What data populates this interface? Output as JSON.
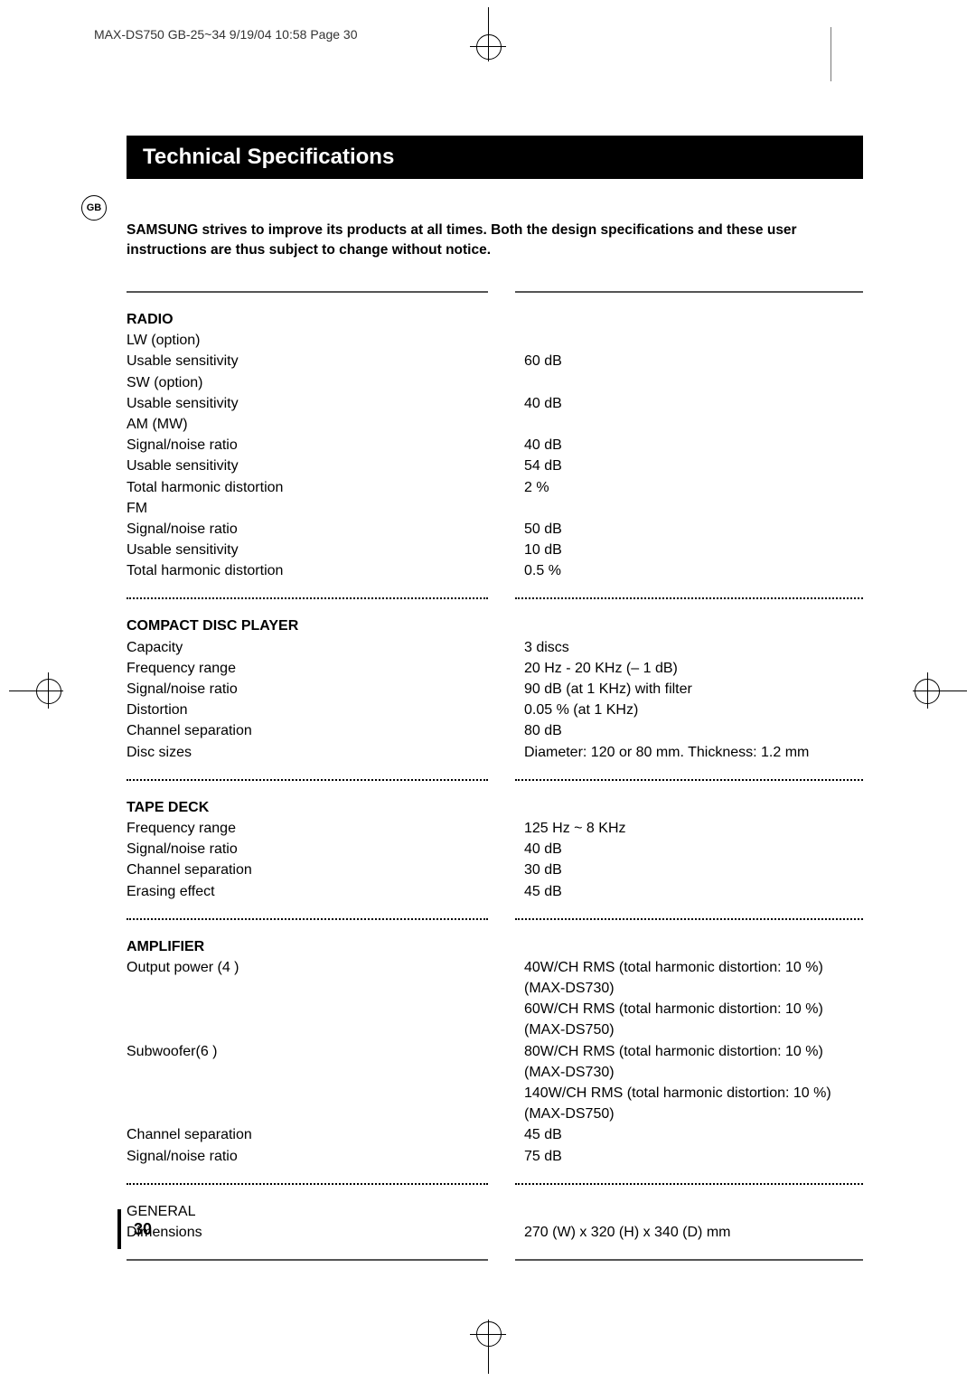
{
  "header": "MAX-DS750 GB-25~34  9/19/04 10:58  Page 30",
  "title": "Technical Specifications",
  "gb_badge": "GB",
  "intro_line1": "SAMSUNG strives to improve its products at all times. Both the design specifications and these user",
  "intro_line2": "instructions are thus subject to change without notice.",
  "radio": {
    "heading": "Radio",
    "lw": "LW (option)",
    "lw_us": "Usable sensitivity",
    "lw_us_v": "60 dB",
    "sw": "SW (option)",
    "sw_us": "Usable sensitivity",
    "sw_us_v": "40 dB",
    "am": "AM (MW)",
    "am_sn": "Signal/noise ratio",
    "am_sn_v": "40 dB",
    "am_us": "Usable sensitivity",
    "am_us_v": "54 dB",
    "am_thd": "Total harmonic distortion",
    "am_thd_v": "2 %",
    "fm": "FM",
    "fm_sn": "Signal/noise ratio",
    "fm_sn_v": "50 dB",
    "fm_us": "Usable sensitivity",
    "fm_us_v": "10 dB",
    "fm_thd": "Total harmonic distortion",
    "fm_thd_v": "0.5 %"
  },
  "cd": {
    "heading": "Compact Disc Player",
    "cap": "Capacity",
    "cap_v": "3 discs",
    "freq": "Frequency range",
    "freq_v": "20 Hz - 20 KHz (– 1 dB)",
    "sn": "Signal/noise ratio",
    "sn_v": "90 dB (at 1 KHz) with filter",
    "dist": "Distortion",
    "dist_v": "0.05 % (at 1 KHz)",
    "cs": "Channel separation",
    "cs_v": "80 dB",
    "ds": "Disc sizes",
    "ds_v": "Diameter: 120 or 80 mm. Thickness: 1.2 mm"
  },
  "tape": {
    "heading": "Tape Deck",
    "freq": "Frequency range",
    "freq_v": "125 Hz ~ 8 KHz",
    "sn": "Signal/noise ratio",
    "sn_v": "40 dB",
    "cs": "Channel separation",
    "cs_v": "30 dB",
    "er": "Erasing effect",
    "er_v": "45 dB"
  },
  "amp": {
    "heading": "Amplifier",
    "op": "Output power (4   )",
    "op_v1": "40W/CH  RMS (total harmonic distortion: 10 %)(MAX-DS730)",
    "op_v2": "60W/CH  RMS (total harmonic distortion: 10 %)(MAX-DS750)",
    "sub": "Subwoofer(6   )",
    "sub_v1": "80W/CH  RMS (total harmonic distortion: 10 %)(MAX-DS730)",
    "sub_v2": "140W/CH  RMS (total harmonic distortion: 10 %)(MAX-DS750)",
    "cs": "Channel separation",
    "cs_v": "45 dB",
    "sn": "Signal/noise ratio",
    "sn_v": "75 dB"
  },
  "general": {
    "heading": "GENERAL",
    "dim": "Dimensions",
    "dim_v": "270 (W) x 320 (H) x 340 (D) mm"
  },
  "page_number": "30"
}
